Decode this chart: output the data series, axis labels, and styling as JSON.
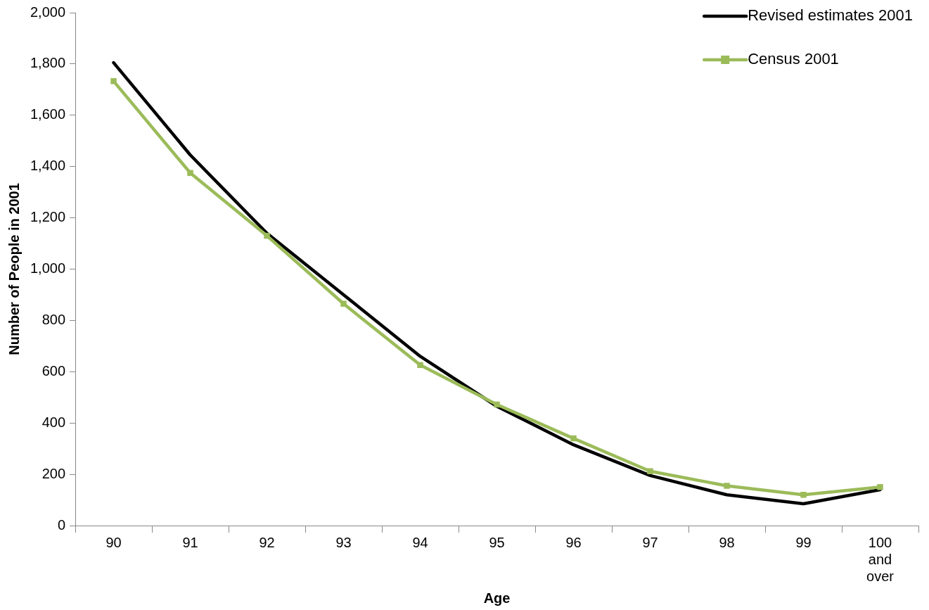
{
  "chart_data": {
    "type": "line",
    "xlabel": "Age",
    "ylabel": "Number of People in 2001",
    "categories": [
      "90",
      "91",
      "92",
      "93",
      "94",
      "95",
      "96",
      "97",
      "98",
      "99",
      "100 and over"
    ],
    "series": [
      {
        "name": "Revised estimates 2001",
        "color": "#000000",
        "marker": "none",
        "values": [
          1805,
          1445,
          1140,
          900,
          660,
          465,
          315,
          195,
          120,
          85,
          140
        ]
      },
      {
        "name": "Census 2001",
        "color": "#9bbb59",
        "marker": "square",
        "values": [
          1733,
          1375,
          1130,
          865,
          626,
          472,
          340,
          212,
          155,
          120,
          150
        ]
      }
    ],
    "ylim": [
      0,
      2000
    ],
    "yticks": [
      0,
      200,
      400,
      600,
      800,
      {
        "value": 1000,
        "label": "1,000"
      },
      {
        "value": 1200,
        "label": "1,200"
      },
      {
        "value": 1400,
        "label": "1,400"
      },
      {
        "value": 1600,
        "label": "1,600"
      },
      {
        "value": 1800,
        "label": "1,800"
      },
      {
        "value": 2000,
        "label": "2,000"
      }
    ],
    "grid": false,
    "legend": "top right"
  }
}
